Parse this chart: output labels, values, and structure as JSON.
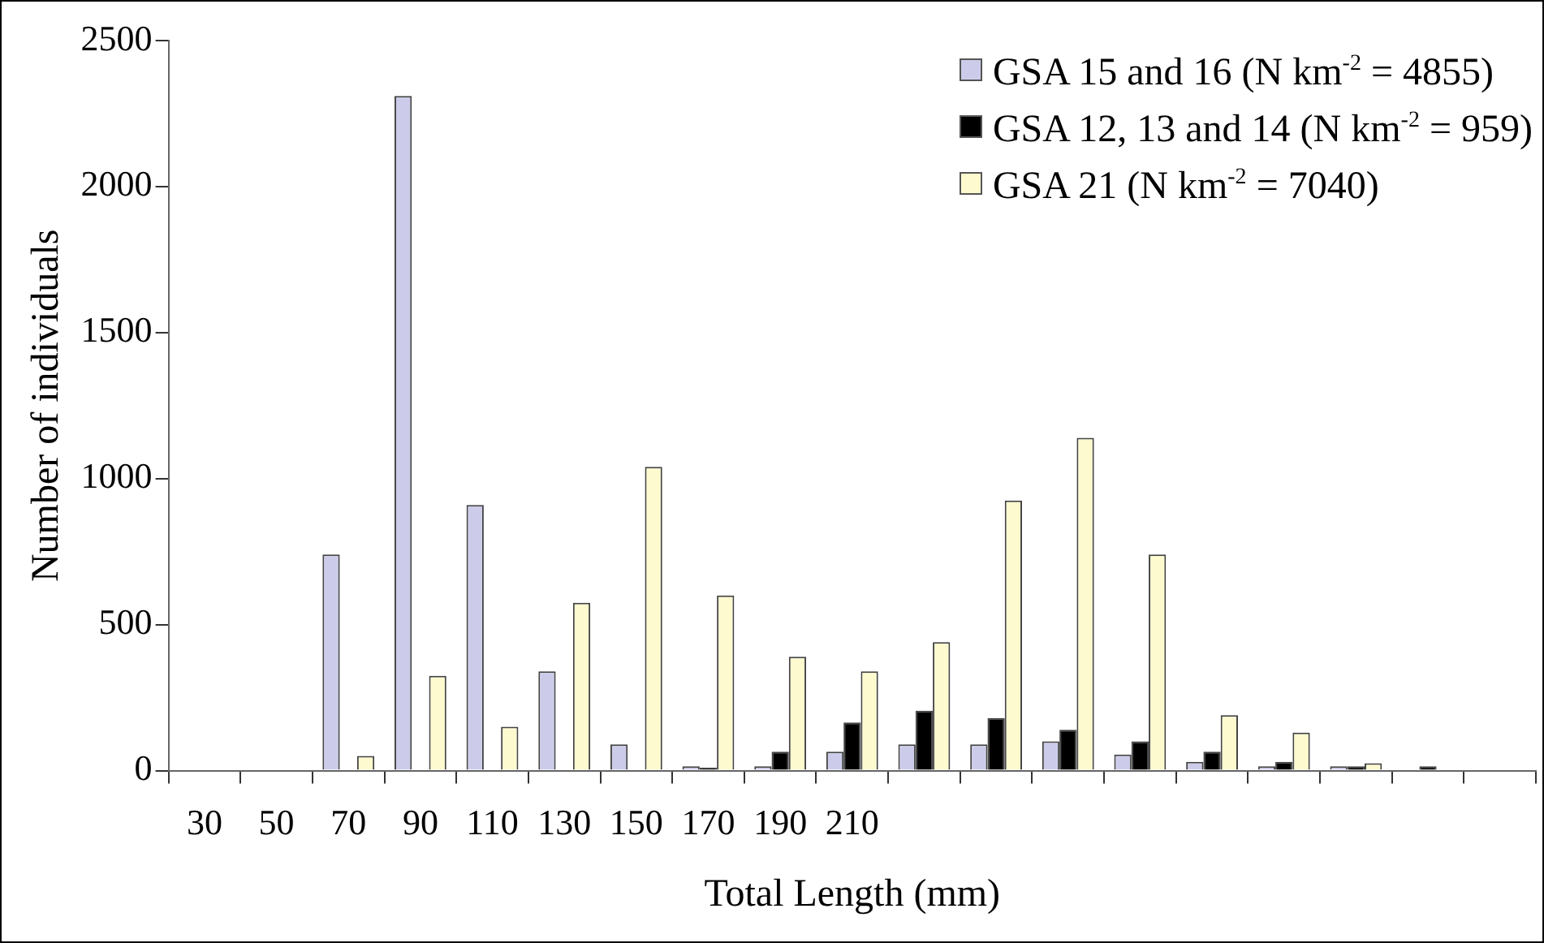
{
  "chart_data": {
    "type": "bar",
    "xlabel": "Total Length (mm)",
    "ylabel": "Number of individuals",
    "categories": [
      "30",
      "50",
      "70",
      "90",
      "110",
      "130",
      "150",
      "170",
      "190",
      "210",
      null,
      null,
      null,
      null,
      null,
      null,
      null,
      null,
      null
    ],
    "series": [
      {
        "name": "GSA 15 and 16 (N km$^{-2}$ = 4855)",
        "color": "#ccccea",
        "values": [
          0,
          0,
          740,
          2310,
          910,
          340,
          90,
          15,
          15,
          65,
          90,
          90,
          100,
          55,
          30,
          15,
          15,
          0,
          0
        ]
      },
      {
        "name": "GSA 12, 13 and 14 (N km$^{-2}$ = 959)",
        "color": "#000000",
        "values": [
          0,
          0,
          0,
          0,
          0,
          0,
          0,
          10,
          65,
          165,
          205,
          180,
          140,
          100,
          65,
          30,
          15,
          15,
          0
        ]
      },
      {
        "name": "GSA 21 (N km$^{-2}$ = 7040)",
        "color": "#fdfad0",
        "values": [
          0,
          0,
          50,
          325,
          150,
          575,
          1040,
          600,
          390,
          340,
          440,
          925,
          1140,
          740,
          190,
          130,
          25,
          0,
          0
        ]
      }
    ],
    "ylim": [
      0,
      2500
    ],
    "yticks": [
      0,
      500,
      1000,
      1500,
      2000,
      2500
    ],
    "grid": false,
    "legend": "top right"
  }
}
